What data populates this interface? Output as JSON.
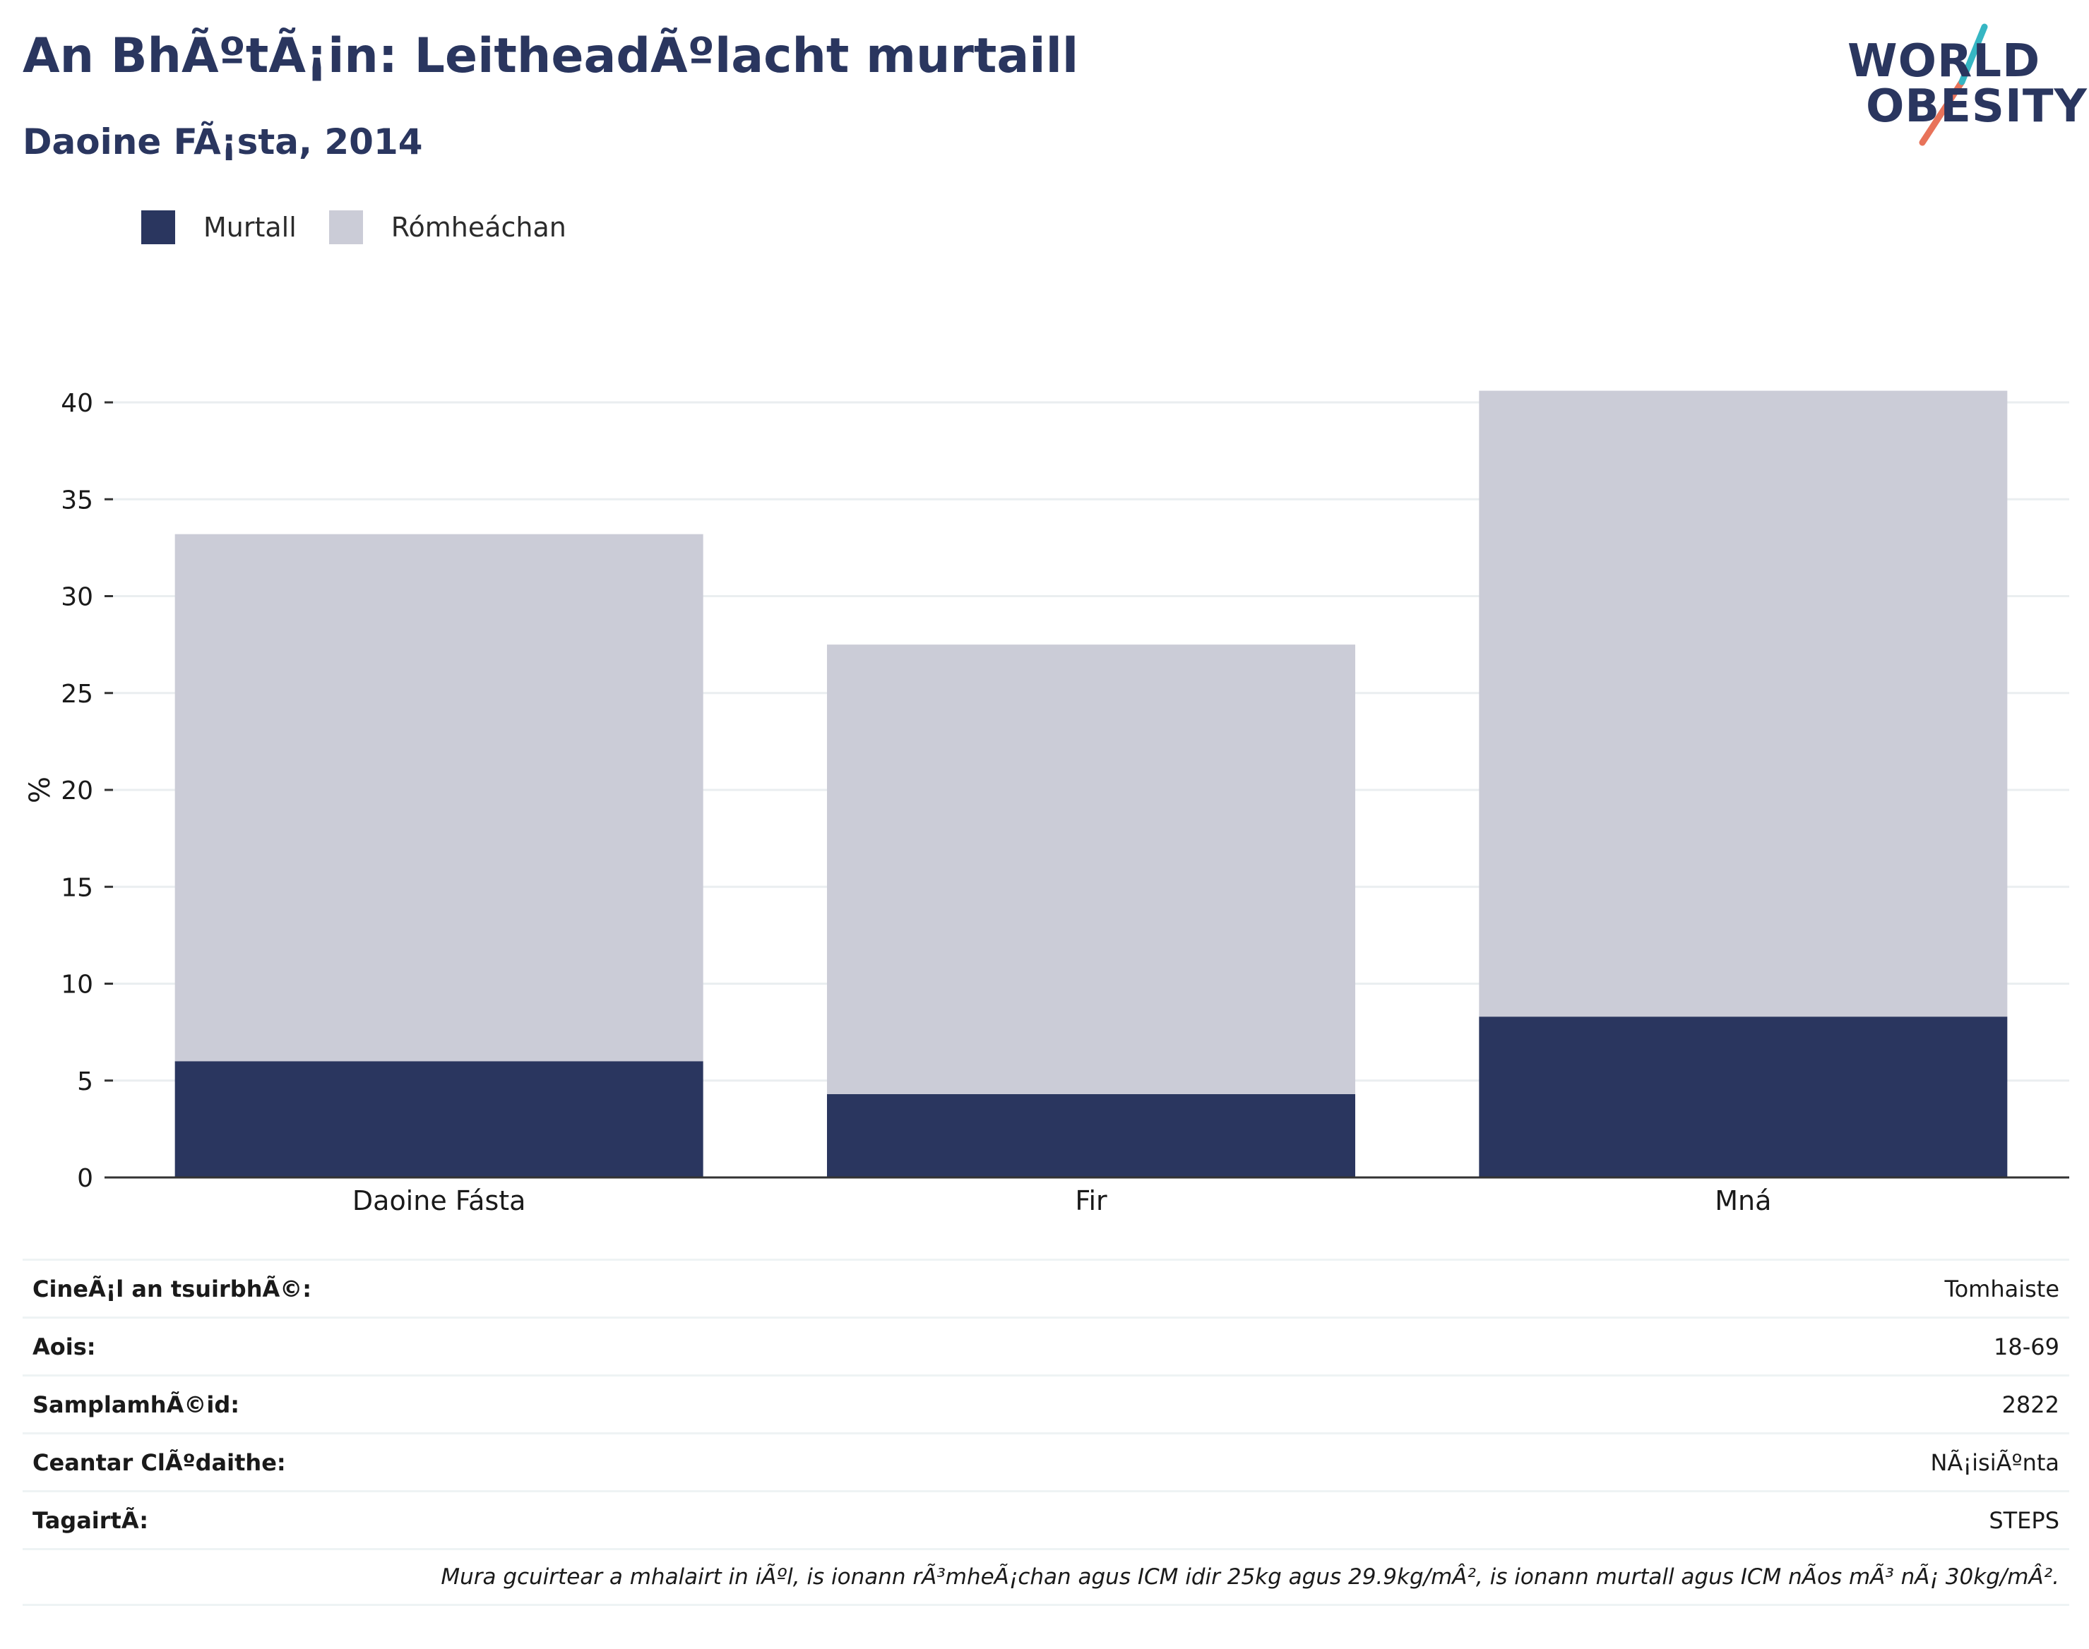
{
  "header": {
    "title": "An BhÃºtÃ¡in: LeitheadÃºlacht murtaill",
    "subtitle": "Daoine FÃ¡sta, 2014"
  },
  "logo": {
    "line1": "WORLD",
    "line2": "OBESITY"
  },
  "colors": {
    "obese": "#2a365f",
    "overweight": "#cbccd7",
    "accent1": "#36b6c3",
    "accent2": "#e8735a"
  },
  "chart_data": {
    "type": "bar",
    "stacked": true,
    "categories": [
      "Daoine Fásta",
      "Fir",
      "Mná"
    ],
    "series": [
      {
        "name": "Murtall",
        "values": [
          6.0,
          4.3,
          8.3
        ]
      },
      {
        "name": "Rómheáchan",
        "values": [
          27.2,
          23.2,
          32.3
        ]
      }
    ],
    "ylabel": "%",
    "ylim": [
      0,
      40.5
    ],
    "yticks": [
      0,
      5,
      10,
      15,
      20,
      25,
      30,
      35,
      40
    ],
    "grid": true,
    "legend": "top-left"
  },
  "info": {
    "rows": [
      {
        "key": "CineÃ¡l an tsuirbhÃ©:",
        "value": "Tomhaiste"
      },
      {
        "key": "Aois:",
        "value": "18-69"
      },
      {
        "key": "SamplamhÃ©id:",
        "value": "2822"
      },
      {
        "key": "Ceantar ClÃºdaithe:",
        "value": "NÃ¡isiÃºnta"
      },
      {
        "key": "TagairtÃ:",
        "value": "STEPS"
      }
    ],
    "note": "Mura gcuirtear a mhalairt in iÃºl, is ionann rÃ³mheÃ¡chan agus ICM idir 25kg agus 29.9kg/mÂ², is ionann murtall agus ICM nÃos mÃ³ nÃ¡ 30kg/mÂ²."
  }
}
